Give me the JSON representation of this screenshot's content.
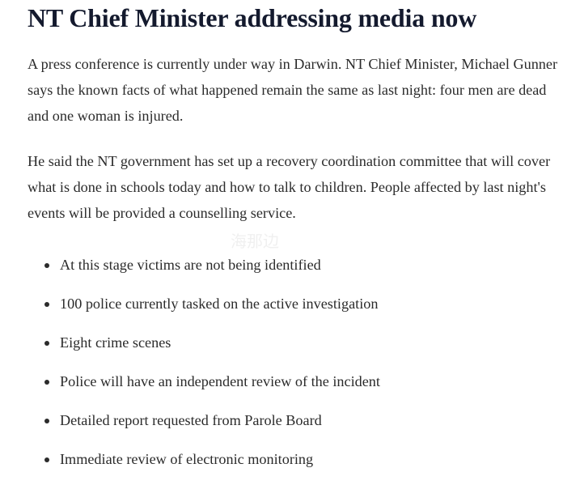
{
  "article": {
    "title": "NT Chief Minister addressing media now",
    "paragraphs": [
      "A press conference is currently under way in Darwin. NT Chief Minister, Michael Gunner says the known facts of what happened remain the same as last night: four men are dead and one woman is injured.",
      "He said the NT government has set up a recovery coordination committee that will cover what is done in schools today and how to talk to children. People affected by last night's events will be provided a counselling service."
    ],
    "bullets": [
      "At this stage victims are not being identified",
      "100 police currently tasked on the active investigation",
      "Eight crime scenes",
      "Police will have an independent review of the incident",
      "Detailed report requested from Parole Board",
      "Immediate review of electronic monitoring"
    ]
  },
  "watermark": "海那边",
  "colors": {
    "title": "#141a2e",
    "text": "#2b2b2b"
  }
}
